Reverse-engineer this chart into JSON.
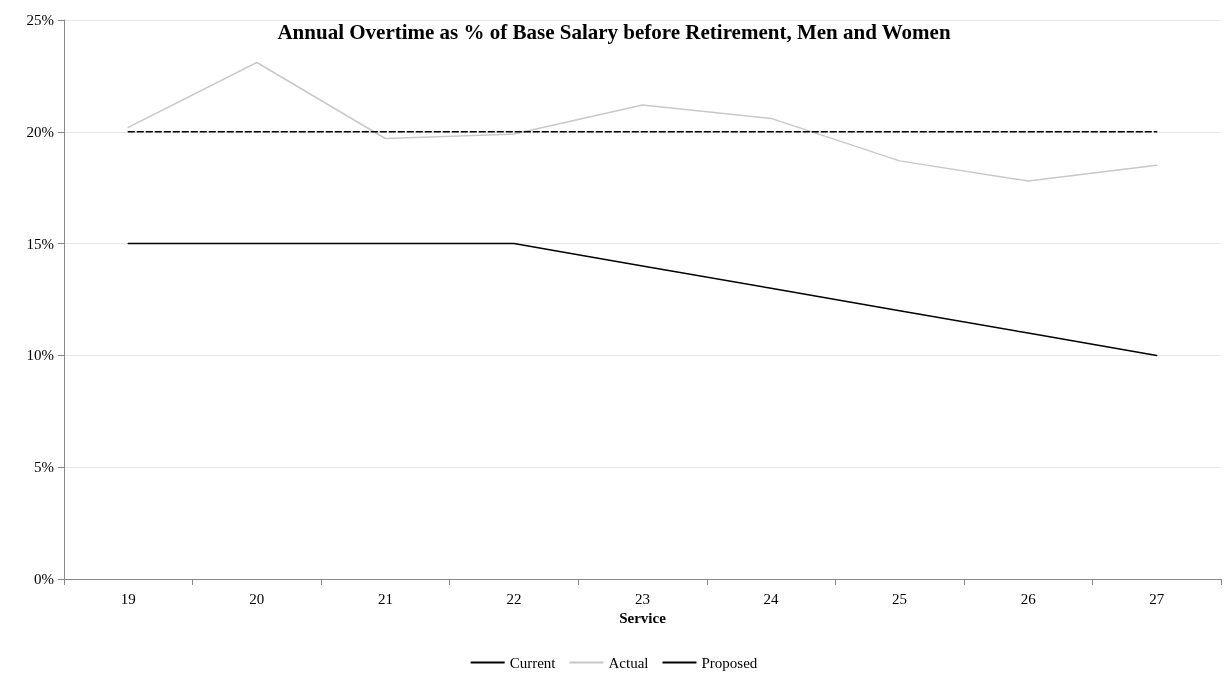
{
  "chart_data": {
    "type": "line",
    "title": "Annual Overtime as % of Base Salary before Retirement, Men and Women",
    "xlabel": "Service",
    "categories": [
      "19",
      "20",
      "21",
      "22",
      "23",
      "24",
      "25",
      "26",
      "27"
    ],
    "series": [
      {
        "name": "Current",
        "color": "#000000",
        "line_style": "solid",
        "values": [
          15,
          15,
          15,
          15,
          14,
          13,
          12,
          11,
          10
        ]
      },
      {
        "name": "Actual",
        "color": "#c8c8c8",
        "line_style": "solid",
        "values": [
          20.2,
          23.1,
          19.7,
          19.9,
          21.2,
          20.6,
          18.7,
          17.8,
          18.5
        ]
      },
      {
        "name": "Proposed",
        "color": "#000000",
        "line_style": "dashed",
        "values": [
          20,
          20,
          20,
          20,
          20,
          20,
          20,
          20,
          20
        ]
      }
    ],
    "ylim": [
      0,
      25
    ],
    "yticks": [
      {
        "value": 0,
        "label": "0%"
      },
      {
        "value": 5,
        "label": "5%"
      },
      {
        "value": 10,
        "label": "10%"
      },
      {
        "value": 15,
        "label": "15%"
      },
      {
        "value": 20,
        "label": "20%"
      },
      {
        "value": 25,
        "label": "25%"
      }
    ],
    "grid": "y",
    "legend": "bottom",
    "marker": "none"
  }
}
